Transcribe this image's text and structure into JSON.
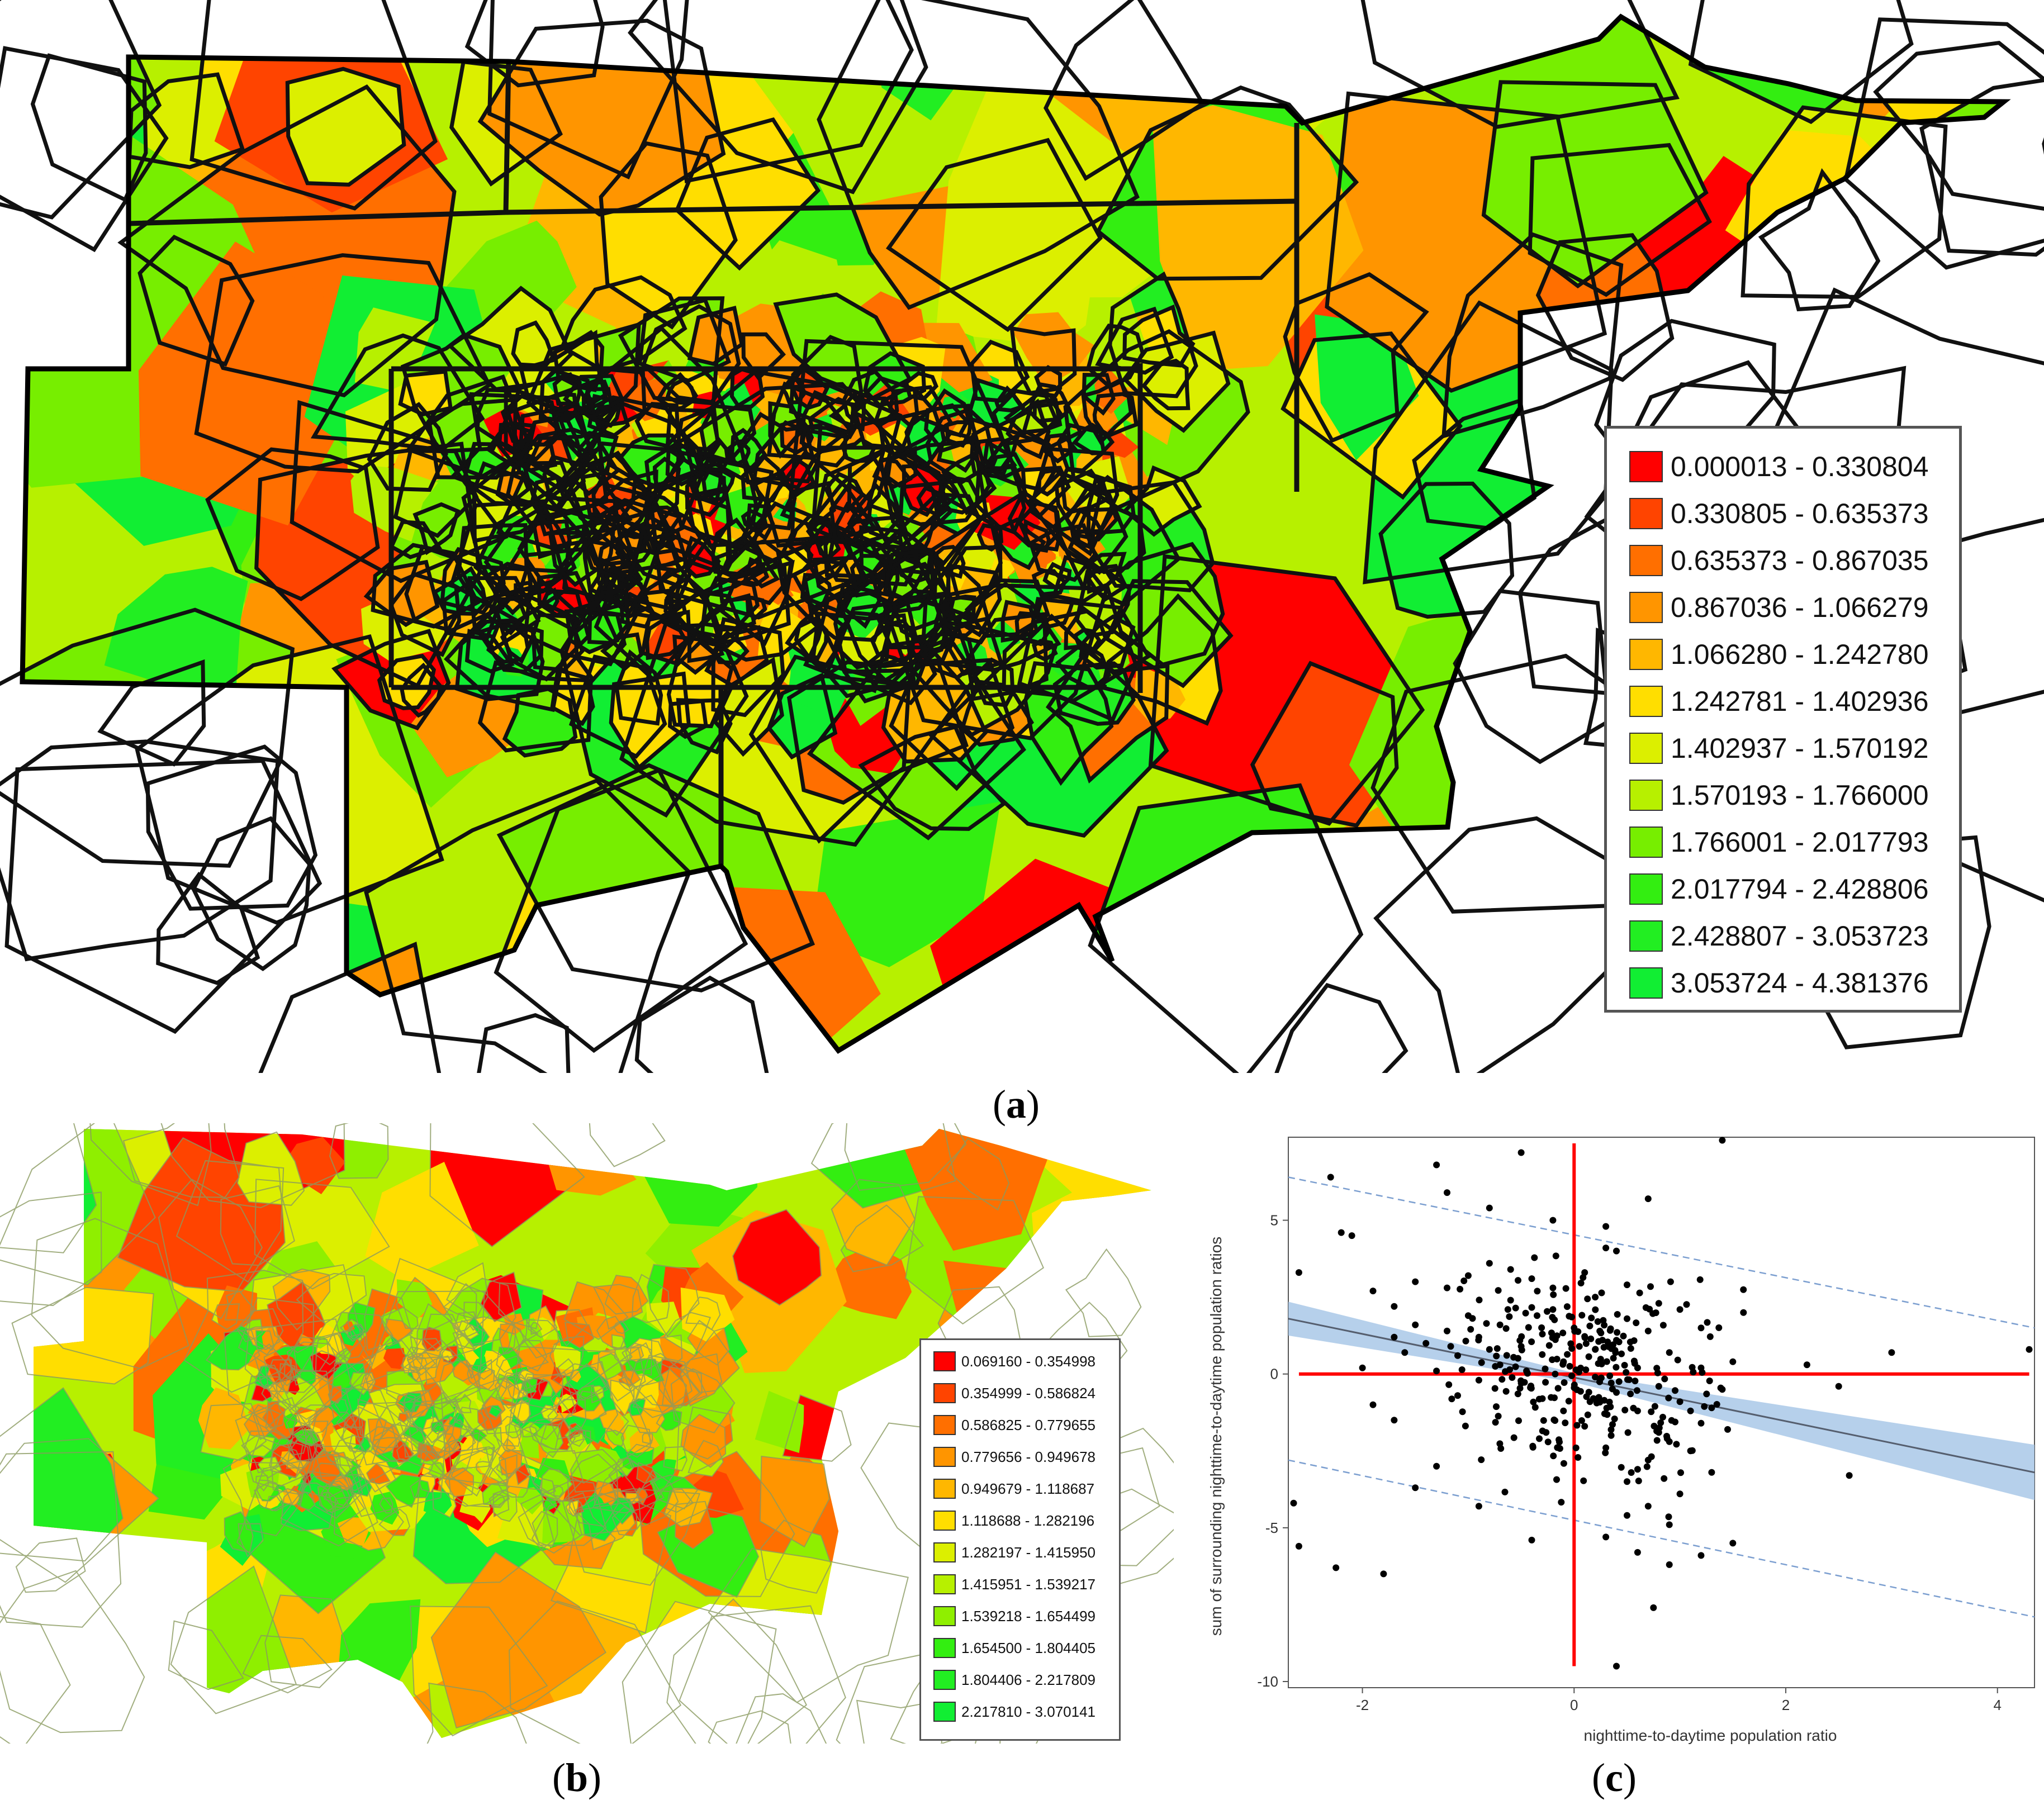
{
  "panel_a": {
    "caption_letter": "a",
    "legend": [
      {
        "label": "0.000013 - 0.330804",
        "color": "#ff0000"
      },
      {
        "label": "0.330805 - 0.635373",
        "color": "#ff4400"
      },
      {
        "label": "0.635373 - 0.867035",
        "color": "#ff6f00"
      },
      {
        "label": "0.867036 - 1.066279",
        "color": "#ff9500"
      },
      {
        "label": "1.066280 - 1.242780",
        "color": "#ffb700"
      },
      {
        "label": "1.242781 - 1.402936",
        "color": "#ffde00"
      },
      {
        "label": "1.402937 - 1.570192",
        "color": "#dcef00"
      },
      {
        "label": "1.570193 - 1.766000",
        "color": "#b7f000"
      },
      {
        "label": "1.766001 - 2.017793",
        "color": "#77ee00"
      },
      {
        "label": "2.017794 - 2.428806",
        "color": "#33ee11"
      },
      {
        "label": "2.428807 - 3.053723",
        "color": "#22ee22"
      },
      {
        "label": "3.053724 - 4.381376",
        "color": "#11ee33"
      }
    ]
  },
  "panel_b": {
    "caption_letter": "b",
    "legend": [
      {
        "label": "0.069160 - 0.354998",
        "color": "#ff0000"
      },
      {
        "label": "0.354999 - 0.586824",
        "color": "#ff4400"
      },
      {
        "label": "0.586825 - 0.779655",
        "color": "#ff6f00"
      },
      {
        "label": "0.779656 - 0.949678",
        "color": "#ff9500"
      },
      {
        "label": "0.949679 - 1.118687",
        "color": "#ffb700"
      },
      {
        "label": "1.118688 - 1.282196",
        "color": "#ffde00"
      },
      {
        "label": "1.282197 - 1.415950",
        "color": "#dcef00"
      },
      {
        "label": "1.415951 - 1.539217",
        "color": "#b7f000"
      },
      {
        "label": "1.539218 - 1.654499",
        "color": "#8fef00"
      },
      {
        "label": "1.654500 - 1.804405",
        "color": "#33ee11"
      },
      {
        "label": "1.804406 - 2.217809",
        "color": "#22ee22"
      },
      {
        "label": "2.217810 - 3.070141",
        "color": "#11ee33"
      }
    ]
  },
  "panel_c": {
    "caption_letter": "c",
    "chart_data": {
      "type": "scatter",
      "xlabel": "nighttime-to-daytime population ratio",
      "ylabel": "sum of surrounding nighttime-to-daytime population ratios",
      "xlim": [
        -2.7,
        4.35
      ],
      "ylim": [
        -10.2,
        7.7
      ],
      "xticks": [
        -2,
        0,
        2,
        4
      ],
      "yticks": [
        -10,
        -5,
        0,
        5
      ],
      "regression": {
        "x_start": -2.7,
        "y_start": 1.8,
        "x_end": 4.35,
        "y_end": -3.2
      },
      "confidence_band_halfwidth": {
        "at_start": 0.55,
        "at_center": 0.15,
        "at_end": 0.9
      },
      "prediction_band": {
        "upper_start": 6.4,
        "upper_end": 1.5,
        "lower_start": -2.8,
        "lower_end": -7.9
      },
      "reference_lines": {
        "x": 0,
        "y": 0
      },
      "points": [
        [
          -2.6,
          3.3
        ],
        [
          -2.65,
          -4.2
        ],
        [
          -2.6,
          -5.6
        ],
        [
          -2.3,
          6.4
        ],
        [
          -2.2,
          4.6
        ],
        [
          -2.1,
          4.5
        ],
        [
          -2.25,
          -6.3
        ],
        [
          -1.8,
          -6.5
        ],
        [
          -1.3,
          6.8
        ],
        [
          -0.5,
          7.2
        ],
        [
          1.4,
          7.6
        ],
        [
          0.7,
          5.7
        ],
        [
          -1.2,
          5.9
        ],
        [
          -0.8,
          5.4
        ],
        [
          -0.2,
          5.0
        ],
        [
          0.3,
          4.8
        ],
        [
          0.3,
          4.1
        ],
        [
          0.4,
          4.0
        ],
        [
          -1.9,
          2.7
        ],
        [
          -1.7,
          2.2
        ],
        [
          -1.5,
          3.0
        ],
        [
          -1.2,
          2.8
        ],
        [
          -1.0,
          3.2
        ],
        [
          -0.8,
          3.6
        ],
        [
          -0.6,
          3.4
        ],
        [
          -0.4,
          3.1
        ],
        [
          -0.2,
          2.8
        ],
        [
          0.1,
          3.3
        ],
        [
          0.5,
          2.9
        ],
        [
          0.8,
          2.3
        ],
        [
          1.0,
          2.1
        ],
        [
          1.2,
          1.5
        ],
        [
          1.5,
          0.4
        ],
        [
          1.6,
          2.0
        ],
        [
          3.0,
          0.7
        ],
        [
          4.3,
          0.8
        ],
        [
          2.2,
          0.3
        ],
        [
          2.5,
          -0.4
        ],
        [
          2.6,
          -3.3
        ],
        [
          1.5,
          -5.5
        ],
        [
          0.75,
          -7.6
        ],
        [
          0.4,
          -9.5
        ],
        [
          0.9,
          -6.2
        ],
        [
          1.2,
          -5.9
        ],
        [
          0.6,
          -5.8
        ],
        [
          0.3,
          -5.3
        ],
        [
          -0.4,
          -5.4
        ],
        [
          -0.9,
          -4.3
        ],
        [
          -1.5,
          -3.7
        ],
        [
          -1.3,
          -3.0
        ],
        [
          -1.7,
          -1.5
        ],
        [
          -1.9,
          -1.0
        ],
        [
          -2.0,
          0.2
        ],
        [
          -1.6,
          0.7
        ],
        [
          -1.4,
          1.0
        ],
        [
          -1.1,
          0.6
        ],
        [
          -0.9,
          1.2
        ],
        [
          -0.7,
          1.6
        ],
        [
          -0.5,
          0.9
        ],
        [
          -0.3,
          1.3
        ],
        [
          -0.1,
          0.4
        ],
        [
          0.2,
          0.8
        ],
        [
          0.4,
          1.1
        ],
        [
          0.6,
          0.2
        ],
        [
          0.8,
          -0.4
        ],
        [
          1.0,
          -0.9
        ],
        [
          1.2,
          -1.6
        ],
        [
          0.9,
          -2.2
        ],
        [
          0.7,
          -2.8
        ],
        [
          0.5,
          -3.5
        ],
        [
          0.3,
          -2.4
        ],
        [
          0.1,
          -1.7
        ],
        [
          -0.1,
          -1.2
        ],
        [
          -0.3,
          -0.8
        ],
        [
          -0.5,
          -0.3
        ],
        [
          -0.7,
          0.3
        ],
        [
          -0.9,
          -0.2
        ],
        [
          -1.1,
          -0.7
        ],
        [
          -1.3,
          0.1
        ],
        [
          -1.5,
          1.6
        ],
        [
          -1.7,
          1.2
        ],
        [
          0.6,
          -1.2
        ],
        [
          0.8,
          -1.9
        ],
        [
          1.1,
          -2.5
        ],
        [
          1.3,
          -3.2
        ],
        [
          1.0,
          -3.9
        ],
        [
          0.7,
          -4.3
        ],
        [
          0.5,
          -4.6
        ],
        [
          0.9,
          -4.9
        ],
        [
          1.1,
          -1.2
        ],
        [
          0.4,
          -0.6
        ],
        [
          0.2,
          -0.1
        ],
        [
          -0.2,
          2.1
        ],
        [
          -0.6,
          2.4
        ],
        [
          -1.0,
          1.9
        ],
        [
          0.0,
          1.5
        ],
        [
          0.2,
          2.5
        ],
        [
          0.5,
          1.8
        ],
        [
          0.7,
          1.4
        ],
        [
          0.9,
          0.7
        ],
        [
          1.2,
          0.2
        ],
        [
          1.4,
          -0.5
        ],
        [
          1.3,
          -1.1
        ],
        [
          0.6,
          -3.1
        ],
        [
          0.35,
          -2.0
        ],
        [
          0.15,
          -0.9
        ],
        [
          -0.45,
          0.1
        ],
        [
          -0.8,
          0.8
        ],
        [
          -1.2,
          1.4
        ],
        [
          -0.35,
          1.9
        ],
        [
          0.05,
          0.9
        ],
        [
          0.85,
          -3.4
        ]
      ]
    }
  }
}
